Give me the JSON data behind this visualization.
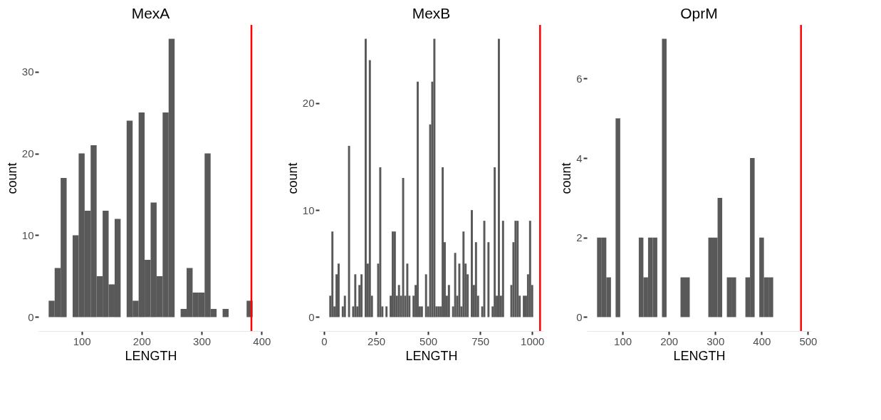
{
  "chart_data": [
    {
      "type": "histogram",
      "title": "MexA",
      "xlabel": "LENGTH",
      "ylabel": "count",
      "color": "#595959",
      "bins": [
        45,
        55,
        65,
        75,
        85,
        95,
        105,
        115,
        125,
        135,
        145,
        155,
        165,
        175,
        185,
        195,
        205,
        215,
        225,
        235,
        245,
        255,
        265,
        275,
        285,
        295,
        305,
        315,
        325,
        335,
        345,
        355,
        365,
        375,
        385
      ],
      "values": [
        2,
        6,
        17,
        0,
        10,
        20,
        13,
        21,
        5,
        13,
        4,
        12,
        0,
        24,
        2,
        25,
        7,
        14,
        5,
        25,
        34,
        0,
        1,
        6,
        3,
        3,
        20,
        1,
        0,
        1,
        0,
        0,
        0,
        2
      ],
      "xlim": [
        28,
        402
      ],
      "xticks": [
        100,
        200,
        300,
        400
      ],
      "ylim": [
        -1.7,
        35.7
      ],
      "yticks": [
        0,
        10,
        20,
        30
      ],
      "ref_lines": [
        {
          "axis": "x",
          "value": 383,
          "color": "#ff0000"
        }
      ]
    },
    {
      "type": "histogram",
      "title": "MexB",
      "xlabel": "LENGTH",
      "ylabel": "count",
      "color": "#595959",
      "bins": [
        25,
        35,
        45,
        55,
        65,
        75,
        85,
        95,
        105,
        115,
        125,
        135,
        145,
        155,
        165,
        175,
        185,
        195,
        205,
        215,
        225,
        235,
        245,
        255,
        265,
        275,
        285,
        295,
        305,
        315,
        325,
        335,
        345,
        355,
        365,
        375,
        385,
        395,
        405,
        415,
        425,
        435,
        445,
        455,
        465,
        475,
        485,
        495,
        505,
        515,
        525,
        535,
        545,
        555,
        565,
        575,
        585,
        595,
        605,
        615,
        625,
        635,
        645,
        655,
        665,
        675,
        685,
        695,
        705,
        715,
        725,
        735,
        745,
        755,
        765,
        775,
        785,
        795,
        805,
        815,
        825,
        835,
        845,
        855,
        865,
        875,
        885,
        895,
        905,
        915,
        925,
        935,
        945,
        955,
        965,
        975,
        985,
        995,
        1005
      ],
      "values": [
        2,
        8,
        1,
        4,
        5,
        0,
        1,
        2,
        0,
        16,
        0,
        1,
        4,
        1,
        3,
        4,
        0,
        26,
        5,
        24,
        2,
        0,
        0,
        5,
        14,
        1,
        0,
        1,
        0,
        2,
        8,
        8,
        2,
        3,
        2,
        13,
        2,
        5,
        2,
        0,
        2,
        3,
        22,
        1,
        1,
        0,
        4,
        1,
        18,
        22,
        26,
        1,
        1,
        1,
        14,
        7,
        2,
        3,
        0,
        1,
        6,
        2,
        5,
        1,
        8,
        5,
        4,
        0,
        10,
        3,
        7,
        2,
        0,
        1,
        9,
        0,
        7,
        0,
        1,
        14,
        2,
        26,
        2,
        9,
        0,
        0,
        0,
        3,
        7,
        9,
        9,
        2,
        0,
        2,
        2,
        4,
        9,
        3
      ],
      "xlim": [
        -24,
        1054
      ],
      "xticks": [
        0,
        250,
        500,
        750,
        1000
      ],
      "ylim": [
        -1.3,
        27.3
      ],
      "yticks": [
        0,
        10,
        20
      ],
      "ref_lines": [
        {
          "axis": "x",
          "value": 1038,
          "color": "#ff0000"
        }
      ]
    },
    {
      "type": "histogram",
      "title": "OprM",
      "xlabel": "LENGTH",
      "ylabel": "count",
      "color": "#595959",
      "bins": [
        45,
        55,
        65,
        75,
        85,
        95,
        105,
        115,
        125,
        135,
        145,
        155,
        165,
        175,
        185,
        195,
        205,
        215,
        225,
        235,
        245,
        255,
        265,
        275,
        285,
        295,
        305,
        315,
        325,
        335,
        345,
        355,
        365,
        375,
        385,
        395,
        405,
        415,
        425
      ],
      "values": [
        2,
        2,
        1,
        0,
        5,
        0,
        0,
        0,
        0,
        2,
        1,
        2,
        2,
        0,
        7,
        0,
        0,
        0,
        1,
        1,
        0,
        0,
        0,
        0,
        2,
        2,
        3,
        0,
        1,
        1,
        0,
        0,
        1,
        4,
        0,
        2,
        1,
        1
      ],
      "xlim": [
        23,
        507
      ],
      "xticks": [
        100,
        200,
        300,
        400,
        500
      ],
      "ylim": [
        -0.35,
        7.35
      ],
      "yticks": [
        0,
        2,
        4,
        6
      ],
      "ref_lines": [
        {
          "axis": "x",
          "value": 485,
          "color": "#ff0000"
        }
      ]
    }
  ]
}
